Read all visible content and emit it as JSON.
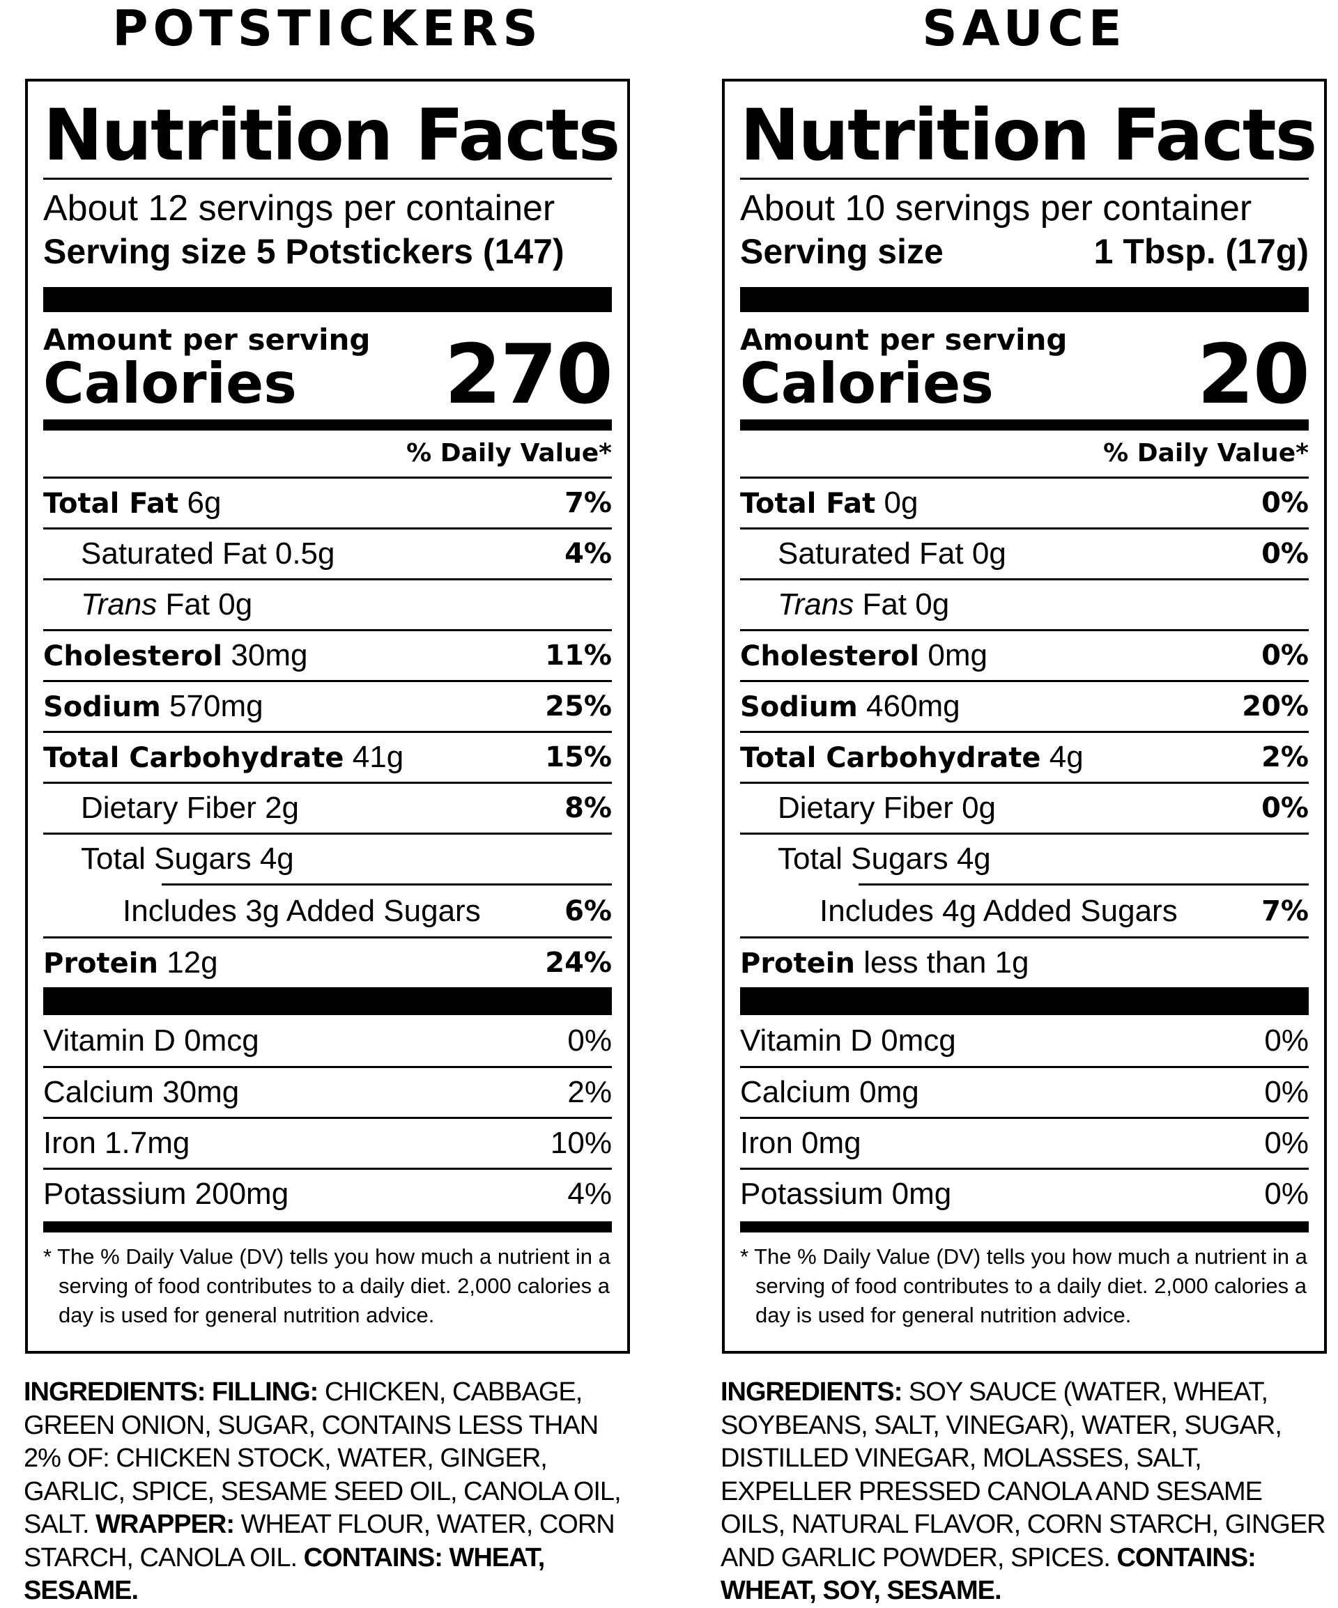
{
  "headings": {
    "left": "POTSTICKERS",
    "right": "SAUCE"
  },
  "labels": [
    {
      "title": "Nutrition Facts",
      "servings_per_container": "About 12 servings per container",
      "serving_size_label": "Serving size",
      "serving_size_value": "5 Potstickers (147)",
      "amount_per_serving": "Amount per serving",
      "calories_label": "Calories",
      "calories_value": "270",
      "daily_value_header": "% Daily Value*",
      "nutrients": [
        {
          "name": "Total Fat",
          "amount": "6g",
          "dv": "7%"
        },
        {
          "name": "Saturated Fat",
          "amount": "0.5g",
          "dv": "4%"
        },
        {
          "name": "Trans",
          "amount": "Fat 0g",
          "dv": ""
        },
        {
          "name": "Cholesterol",
          "amount": "30mg",
          "dv": "11%"
        },
        {
          "name": "Sodium",
          "amount": "570mg",
          "dv": "25%"
        },
        {
          "name": "Total Carbohydrate",
          "amount": "41g",
          "dv": "15%"
        },
        {
          "name": "Dietary Fiber",
          "amount": "2g",
          "dv": "8%"
        },
        {
          "name": "Total Sugars",
          "amount": "4g",
          "dv": ""
        },
        {
          "name": "Includes 3g Added Sugars",
          "amount": "",
          "dv": "6%"
        },
        {
          "name": "Protein",
          "amount": "12g",
          "dv": "24%"
        }
      ],
      "vitamins": [
        {
          "name": "Vitamin D 0mcg",
          "dv": "0%"
        },
        {
          "name": "Calcium 30mg",
          "dv": "2%"
        },
        {
          "name": "Iron 1.7mg",
          "dv": "10%"
        },
        {
          "name": "Potassium 200mg",
          "dv": "4%"
        }
      ],
      "footnote": "* The % Daily Value (DV) tells you how much a nutrient in a serving of food contributes to a daily diet. 2,000 calories a day is used for general nutrition advice."
    },
    {
      "title": "Nutrition Facts",
      "servings_per_container": "About 10 servings per container",
      "serving_size_label": "Serving size",
      "serving_size_value": "1 Tbsp. (17g)",
      "amount_per_serving": "Amount per serving",
      "calories_label": "Calories",
      "calories_value": "20",
      "daily_value_header": "% Daily Value*",
      "nutrients": [
        {
          "name": "Total Fat",
          "amount": "0g",
          "dv": "0%"
        },
        {
          "name": "Saturated Fat",
          "amount": "0g",
          "dv": "0%"
        },
        {
          "name": "Trans",
          "amount": "Fat 0g",
          "dv": ""
        },
        {
          "name": "Cholesterol",
          "amount": "0mg",
          "dv": "0%"
        },
        {
          "name": "Sodium",
          "amount": "460mg",
          "dv": "20%"
        },
        {
          "name": "Total Carbohydrate",
          "amount": "4g",
          "dv": "2%"
        },
        {
          "name": "Dietary Fiber",
          "amount": "0g",
          "dv": "0%"
        },
        {
          "name": "Total Sugars",
          "amount": "4g",
          "dv": ""
        },
        {
          "name": "Includes 4g Added Sugars",
          "amount": "",
          "dv": "7%"
        },
        {
          "name": "Protein",
          "amount": "less than 1g",
          "dv": ""
        }
      ],
      "vitamins": [
        {
          "name": "Vitamin D 0mcg",
          "dv": "0%"
        },
        {
          "name": "Calcium 0mg",
          "dv": "0%"
        },
        {
          "name": "Iron 0mg",
          "dv": "0%"
        },
        {
          "name": "Potassium 0mg",
          "dv": "0%"
        }
      ],
      "footnote": "* The % Daily Value (DV) tells you how much a nutrient in a serving of food contributes to a daily diet. 2,000 calories a day is used for general nutrition advice."
    }
  ],
  "ingredients": {
    "left": {
      "label1": "INGREDIENTS: FILLING:",
      "text1": "CHICKEN, CABBAGE, GREEN ONION, SUGAR, CONTAINS LESS THAN 2% OF: CHICKEN STOCK, WATER, GINGER, GARLIC, SPICE, SESAME SEED OIL, CANOLA OIL, SALT.",
      "label2": "WRAPPER:",
      "text2": "WHEAT FLOUR, WATER, CORN STARCH, CANOLA OIL.",
      "label3": "CONTAINS: WHEAT, SESAME."
    },
    "right": {
      "label1": "INGREDIENTS:",
      "text1": "SOY SAUCE (WATER, WHEAT, SOYBEANS, SALT, VINEGAR), WATER, SUGAR, DISTILLED VINEGAR, MOLASSES, SALT, EXPELLER PRESSED CANOLA AND SESAME OILS, NATURAL FLAVOR, CORN STARCH, GINGER AND GARLIC POWDER, SPICES.",
      "label3": "CONTAINS: WHEAT, SOY, SESAME."
    }
  }
}
